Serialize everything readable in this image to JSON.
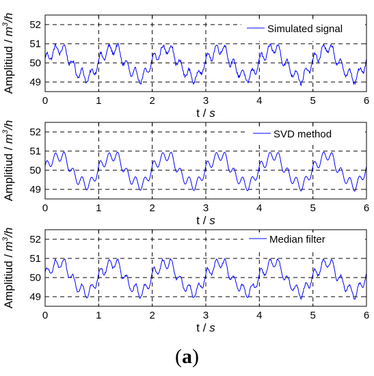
{
  "figure": {
    "caption_open": "(",
    "caption_letter": "a",
    "caption_close": ")"
  },
  "chart_data": [
    {
      "type": "line",
      "xlabel_main": "t / ",
      "xlabel_unit": "s",
      "ylabel_main": "Amplitiud / ",
      "ylabel_unit_base": "m",
      "ylabel_unit_exp": "3",
      "ylabel_unit_tail": "/h",
      "xlim": [
        0,
        6
      ],
      "ylim": [
        48.5,
        52.5
      ],
      "xticks": [
        0,
        1,
        2,
        3,
        4,
        5,
        6
      ],
      "yticks": [
        49,
        50,
        51,
        52
      ],
      "grid": true,
      "legend_position": "top-right",
      "color": "#0000ff",
      "series": [
        {
          "name": "Simulated signal",
          "signal": {
            "mean": 50,
            "fundamental_amp": 0.75,
            "period_s": 1,
            "harmonic_amp": 0.28,
            "harmonic_period_s": 0.1667,
            "noise_amp": 0.13,
            "samples": 600
          }
        }
      ]
    },
    {
      "type": "line",
      "xlabel_main": "t / ",
      "xlabel_unit": "s",
      "ylabel_main": "Amplitiud / ",
      "ylabel_unit_base": "m",
      "ylabel_unit_exp": "3",
      "ylabel_unit_tail": "/h",
      "xlim": [
        0,
        6
      ],
      "ylim": [
        48.5,
        52.5
      ],
      "xticks": [
        0,
        1,
        2,
        3,
        4,
        5,
        6
      ],
      "yticks": [
        49,
        50,
        51,
        52
      ],
      "grid": true,
      "legend_position": "top-right",
      "color": "#0000ff",
      "series": [
        {
          "name": "SVD method",
          "signal": {
            "mean": 50,
            "fundamental_amp": 0.75,
            "period_s": 1,
            "harmonic_amp": 0.28,
            "harmonic_period_s": 0.1667,
            "noise_amp": 0.0,
            "samples": 600
          }
        }
      ]
    },
    {
      "type": "line",
      "xlabel_main": "t / ",
      "xlabel_unit": "s",
      "ylabel_main": "Amplitiud / ",
      "ylabel_unit_base": "m",
      "ylabel_unit_exp": "3",
      "ylabel_unit_tail": "/h",
      "xlim": [
        0,
        6
      ],
      "ylim": [
        48.5,
        52.5
      ],
      "xticks": [
        0,
        1,
        2,
        3,
        4,
        5,
        6
      ],
      "yticks": [
        49,
        50,
        51,
        52
      ],
      "grid": true,
      "legend_position": "top-right",
      "color": "#0000ff",
      "series": [
        {
          "name": "Median filter",
          "signal": {
            "mean": 50,
            "fundamental_amp": 0.75,
            "period_s": 1,
            "harmonic_amp": 0.28,
            "harmonic_period_s": 0.1667,
            "noise_amp": 0.09,
            "samples": 600
          }
        }
      ]
    }
  ]
}
